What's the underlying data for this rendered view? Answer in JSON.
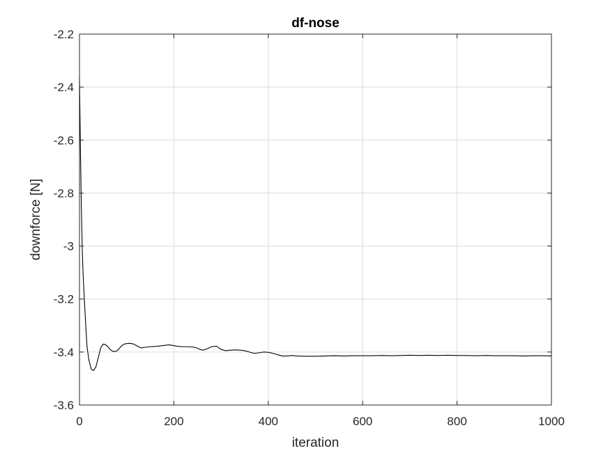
{
  "chart_data": {
    "type": "line",
    "title": "df-nose",
    "xlabel": "iteration",
    "ylabel": "downforce [N]",
    "xlim": [
      0,
      1000
    ],
    "ylim": [
      -3.6,
      -2.2
    ],
    "xticks": [
      0,
      200,
      400,
      600,
      800,
      1000
    ],
    "xtick_labels": [
      "0",
      "200",
      "400",
      "600",
      "800",
      "1000"
    ],
    "yticks": [
      -2.2,
      -2.4,
      -2.6,
      -2.8,
      -3.0,
      -3.2,
      -3.4,
      -3.6
    ],
    "ytick_labels": [
      "-2.2",
      "-2.4",
      "-2.6",
      "-2.8",
      "-3",
      "-3.2",
      "-3.4",
      "-3.6"
    ],
    "grid": true,
    "line_color": "#000000",
    "grid_color": "#dcdcdc",
    "axis_color": "#262626",
    "series": [
      {
        "x": [
          0,
          2,
          4,
          6,
          8,
          10,
          13,
          16,
          20,
          25,
          30,
          35,
          40,
          45,
          50,
          55,
          60,
          65,
          70,
          75,
          80,
          85,
          90,
          95,
          100,
          105,
          110,
          115,
          120,
          125,
          130,
          140,
          150,
          160,
          170,
          180,
          190,
          200,
          210,
          220,
          230,
          240,
          248,
          255,
          262,
          270,
          280,
          290,
          300,
          310,
          320,
          330,
          340,
          350,
          360,
          370,
          380,
          390,
          400,
          410,
          420,
          430,
          440,
          450,
          460,
          480,
          500,
          520,
          540,
          560,
          580,
          600,
          620,
          640,
          660,
          680,
          700,
          720,
          740,
          760,
          780,
          800,
          820,
          840,
          860,
          880,
          900,
          920,
          940,
          960,
          980,
          1000
        ],
        "y": [
          -2.36,
          -2.63,
          -2.86,
          -3.02,
          -3.12,
          -3.19,
          -3.29,
          -3.38,
          -3.43,
          -3.465,
          -3.47,
          -3.455,
          -3.42,
          -3.385,
          -3.37,
          -3.372,
          -3.38,
          -3.39,
          -3.397,
          -3.398,
          -3.395,
          -3.385,
          -3.375,
          -3.37,
          -3.368,
          -3.367,
          -3.368,
          -3.37,
          -3.375,
          -3.38,
          -3.384,
          -3.382,
          -3.38,
          -3.379,
          -3.377,
          -3.375,
          -3.373,
          -3.376,
          -3.379,
          -3.38,
          -3.38,
          -3.381,
          -3.384,
          -3.39,
          -3.393,
          -3.388,
          -3.38,
          -3.378,
          -3.39,
          -3.395,
          -3.393,
          -3.392,
          -3.393,
          -3.395,
          -3.4,
          -3.405,
          -3.403,
          -3.4,
          -3.401,
          -3.405,
          -3.41,
          -3.415,
          -3.415,
          -3.413,
          -3.415,
          -3.416,
          -3.416,
          -3.415,
          -3.414,
          -3.415,
          -3.414,
          -3.414,
          -3.414,
          -3.413,
          -3.414,
          -3.413,
          -3.412,
          -3.413,
          -3.412,
          -3.413,
          -3.412,
          -3.413,
          -3.413,
          -3.414,
          -3.413,
          -3.414,
          -3.414,
          -3.414,
          -3.415,
          -3.414,
          -3.414,
          -3.415
        ]
      }
    ]
  }
}
